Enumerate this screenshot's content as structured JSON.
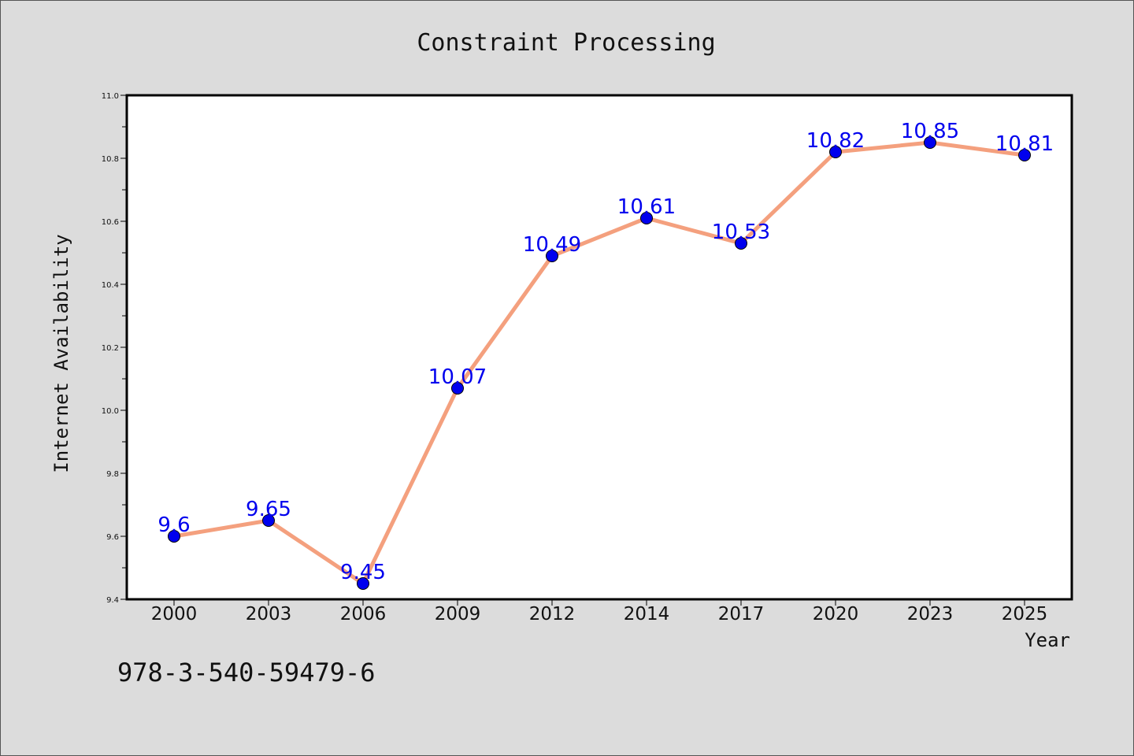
{
  "chart_data": {
    "type": "line",
    "title": "Constraint Processing",
    "xlabel": "Year",
    "ylabel": "Internet Availability",
    "categories": [
      "2000",
      "2003",
      "2006",
      "2009",
      "2012",
      "2014",
      "2017",
      "2020",
      "2023",
      "2025"
    ],
    "series": [
      {
        "values": [
          9.6,
          9.65,
          9.45,
          10.07,
          10.49,
          10.61,
          10.53,
          10.82,
          10.85,
          10.81
        ]
      }
    ],
    "data_labels": [
      "9.6",
      "9.65",
      "9.45",
      "10.07",
      "10.49",
      "10.61",
      "10.53",
      "10.82",
      "10.85",
      "10.81"
    ],
    "ylim": [
      9.4,
      11.0
    ],
    "yticks": [
      "9.4",
      "9.6",
      "9.8",
      "10.0",
      "10.2",
      "10.4",
      "10.6",
      "10.8",
      "11.0"
    ],
    "grid": false,
    "legend": "none",
    "colors": {
      "line": "#f4a07e",
      "marker": "#0000ee",
      "label": "#0000ee",
      "background": "#dcdcdc",
      "plot_background": "#ffffff"
    }
  },
  "footer": {
    "isbn": "978-3-540-59479-6"
  }
}
